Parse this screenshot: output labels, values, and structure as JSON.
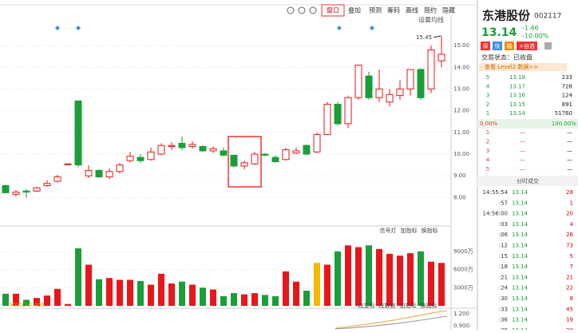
{
  "toolbar": [
    "窗口",
    "叠加",
    "预测",
    "筹码",
    "画线",
    "简约",
    "隐藏"
  ],
  "kline": {
    "setting": "设置均线",
    "max_label": {
      "value": 15.45,
      "label": "15.45"
    },
    "ylim": [
      6.8,
      17.1
    ],
    "price_ticks": [
      {
        "value": 15,
        "label": "15.00"
      },
      {
        "value": 14,
        "label": "14.00"
      },
      {
        "value": 13,
        "label": "13.00"
      },
      {
        "value": 12,
        "label": "12.00"
      },
      {
        "value": 11,
        "label": "11.00"
      },
      {
        "value": 10,
        "label": "10.00"
      },
      {
        "value": 9,
        "label": "9.00"
      },
      {
        "value": 8,
        "label": "8.00"
      }
    ],
    "candles": [
      {
        "open": 8.55,
        "close": 8.22,
        "high": 8.6,
        "low": 8.2
      },
      {
        "open": 8.15,
        "close": 8.25,
        "high": 8.35,
        "low": 8.05
      },
      {
        "open": 8.3,
        "close": 8.25,
        "high": 8.4,
        "low": 8.0
      },
      {
        "open": 8.3,
        "close": 8.45,
        "high": 8.5,
        "low": 8.25
      },
      {
        "open": 8.55,
        "close": 8.65,
        "high": 8.8,
        "low": 8.5
      },
      {
        "open": 8.75,
        "close": 8.95,
        "high": 9.05,
        "low": 8.7
      },
      {
        "open": 9.52,
        "close": 9.55,
        "high": 9.55,
        "low": 9.5
      },
      {
        "open": 12.45,
        "close": 9.5,
        "high": 12.45,
        "low": 9.4
      },
      {
        "open": 9.0,
        "close": 9.25,
        "high": 9.5,
        "low": 8.9
      },
      {
        "open": 9.25,
        "close": 8.95,
        "high": 9.3,
        "low": 8.9
      },
      {
        "open": 8.95,
        "close": 9.2,
        "high": 9.35,
        "low": 8.85
      },
      {
        "open": 9.2,
        "close": 9.5,
        "high": 9.6,
        "low": 9.1
      },
      {
        "open": 9.7,
        "close": 9.9,
        "high": 10.1,
        "low": 9.6
      },
      {
        "open": 9.85,
        "close": 9.7,
        "high": 10.0,
        "low": 9.6
      },
      {
        "open": 9.75,
        "close": 10.1,
        "high": 10.3,
        "low": 9.7
      },
      {
        "open": 10.0,
        "close": 10.4,
        "high": 10.5,
        "low": 9.95
      },
      {
        "open": 10.35,
        "close": 10.4,
        "high": 10.55,
        "low": 10.2
      },
      {
        "open": 10.5,
        "close": 10.3,
        "high": 10.8,
        "low": 10.2
      },
      {
        "open": 10.35,
        "close": 10.45,
        "high": 10.6,
        "low": 10.25
      },
      {
        "open": 10.35,
        "close": 10.15,
        "high": 10.4,
        "low": 10.1
      },
      {
        "open": 10.15,
        "close": 10.25,
        "high": 10.35,
        "low": 10.05
      },
      {
        "open": 10.15,
        "close": 9.95,
        "high": 10.3,
        "low": 9.9
      },
      {
        "open": 9.95,
        "close": 9.45,
        "high": 9.95,
        "low": 9.4
      },
      {
        "open": 9.45,
        "close": 9.6,
        "high": 9.7,
        "low": 9.3
      },
      {
        "open": 9.55,
        "close": 10.0,
        "high": 10.1,
        "low": 9.5
      },
      {
        "open": 10.0,
        "close": 9.95,
        "high": 10.05,
        "low": 9.9
      },
      {
        "open": 9.85,
        "close": 9.65,
        "high": 9.95,
        "low": 9.6
      },
      {
        "open": 9.75,
        "close": 10.2,
        "high": 10.3,
        "low": 9.7
      },
      {
        "open": 10.05,
        "close": 10.15,
        "high": 10.3,
        "low": 10.0
      },
      {
        "open": 10.4,
        "close": 10.0,
        "high": 10.45,
        "low": 9.95
      },
      {
        "open": 10.1,
        "close": 10.9,
        "high": 11.0,
        "low": 10.05
      },
      {
        "open": 10.9,
        "close": 12.3,
        "high": 12.4,
        "low": 10.9
      },
      {
        "open": 12.3,
        "close": 11.4,
        "high": 12.4,
        "low": 11.3
      },
      {
        "open": 11.4,
        "close": 12.6,
        "high": 12.7,
        "low": 11.2
      },
      {
        "open": 12.6,
        "close": 14.1,
        "high": 14.1,
        "low": 12.5
      },
      {
        "open": 13.6,
        "close": 12.6,
        "high": 13.8,
        "low": 12.5
      },
      {
        "open": 12.6,
        "close": 13.0,
        "high": 13.9,
        "low": 12.4
      },
      {
        "open": 12.4,
        "close": 12.75,
        "high": 13.0,
        "low": 12.2
      },
      {
        "open": 12.7,
        "close": 13.0,
        "high": 13.4,
        "low": 12.5
      },
      {
        "open": 13.0,
        "close": 13.9,
        "high": 13.9,
        "low": 12.7
      },
      {
        "open": 13.9,
        "close": 12.6,
        "high": 13.95,
        "low": 12.5
      },
      {
        "open": 13.0,
        "close": 14.8,
        "high": 15.0,
        "low": 12.8
      },
      {
        "open": 14.3,
        "close": 14.6,
        "high": 15.45,
        "low": 14.0
      }
    ],
    "up_color": "#e8161a",
    "down_color": "#1a9e3a",
    "volume": {
      "ylim": [
        0,
        13200
      ],
      "values": [
        2000,
        2000,
        1000,
        1300,
        1700,
        2800,
        300,
        9500,
        6800,
        4400,
        4600,
        4300,
        4300,
        4100,
        3500,
        5300,
        3700,
        4000,
        3500,
        3000,
        2700,
        1600,
        2100,
        1900,
        2100,
        1800,
        1600,
        5700,
        4000,
        2500,
        7100,
        6800,
        9000,
        10000,
        9700,
        10000,
        9400,
        8600,
        8300,
        8700,
        9000,
        7300,
        7100
      ],
      "highlight": {
        "index": 30,
        "color": "#f5b800"
      },
      "ticks": [
        {
          "value": 9000,
          "label": "9000万"
        },
        {
          "value": 6000,
          "label": "6000万"
        },
        {
          "value": 3000,
          "label": "3000万"
        }
      ]
    },
    "indicator_buttons": [
      "信号灯",
      "加指标",
      "换指标"
    ],
    "lower_buttons": [
      "改显标",
      "改数数",
      "加指标",
      "换指标"
    ],
    "macd_label": "MACD-0.400",
    "macd_ticks": [
      "1.200",
      "0.900"
    ]
  },
  "quote": {
    "name": "东港股份",
    "code": "002117",
    "price": "13.14",
    "arrow": "↓",
    "change": "-1.46",
    "pct": "-10.00%",
    "badges": [
      "深",
      "快",
      "融",
      "+自选"
    ],
    "status": "交易状态：已收盘",
    "level2": "查看 Level2 数据>>"
  },
  "order_book": {
    "sell": [
      [
        "5",
        "13.18",
        "233"
      ],
      [
        "4",
        "13.17",
        "728"
      ],
      [
        "3",
        "13.16",
        "124"
      ],
      [
        "2",
        "13.15",
        "891"
      ],
      [
        "1",
        "13.14",
        "51760"
      ]
    ],
    "summary": [
      "0.00%",
      "100.00%"
    ],
    "buy": [
      [
        "1",
        "—",
        "—"
      ],
      [
        "2",
        "—",
        "—"
      ],
      [
        "3",
        "—",
        "—"
      ],
      [
        "4",
        "—",
        "—"
      ],
      [
        "5",
        "—",
        "—"
      ]
    ]
  },
  "trades": {
    "title": "分时成交",
    "rows": [
      [
        "14:55:54",
        "13.14",
        "28"
      ],
      [
        ":57",
        "13.14",
        "1"
      ],
      [
        "14:56:00",
        "13.14",
        "20"
      ],
      [
        ":03",
        "13.14",
        "4"
      ],
      [
        ":06",
        "13.14",
        "26"
      ],
      [
        ":12",
        "13.14",
        "73"
      ],
      [
        ":15",
        "13.14",
        "5"
      ],
      [
        ":18",
        "13.14",
        "7"
      ],
      [
        ":21",
        "13.14",
        "21"
      ],
      [
        ":24",
        "13.14",
        "22"
      ],
      [
        ":30",
        "13.14",
        "8"
      ],
      [
        ":33",
        "13.14",
        "45"
      ],
      [
        ":36",
        "13.14",
        "19"
      ],
      [
        ":39",
        "13.14",
        "20"
      ]
    ]
  }
}
